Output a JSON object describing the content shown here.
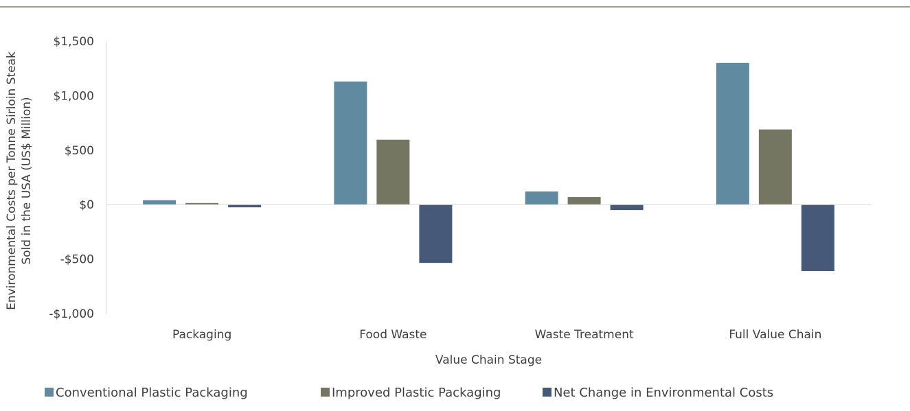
{
  "chart_data": {
    "type": "bar",
    "title": "",
    "xlabel": "Value Chain Stage",
    "ylabel_lines": [
      "Environmental Costs per Tonne Sirloin Steak",
      "Sold in the USA (US$ Million)"
    ],
    "categories": [
      "Packaging",
      "Food Waste",
      "Waste Treatment",
      "Full Value Chain"
    ],
    "ylim": [
      -1000,
      1500
    ],
    "y_ticks": [
      1500,
      1000,
      500,
      0,
      -500,
      -1000
    ],
    "y_tick_labels": [
      "$1,500",
      "$1,000",
      "$500",
      "$0",
      "-$500",
      "-$1,000"
    ],
    "grid": false,
    "legend_position": "bottom",
    "series": [
      {
        "name": "Conventional Plastic Packaging",
        "color": "#5f8aa0",
        "values": [
          40,
          1130,
          120,
          1300
        ]
      },
      {
        "name": "Improved Plastic Packaging",
        "color": "#747662",
        "values": [
          15,
          595,
          70,
          690
        ]
      },
      {
        "name": "Net Change in Environmental Costs",
        "color": "#465978",
        "values": [
          -25,
          -535,
          -50,
          -610
        ]
      }
    ]
  }
}
